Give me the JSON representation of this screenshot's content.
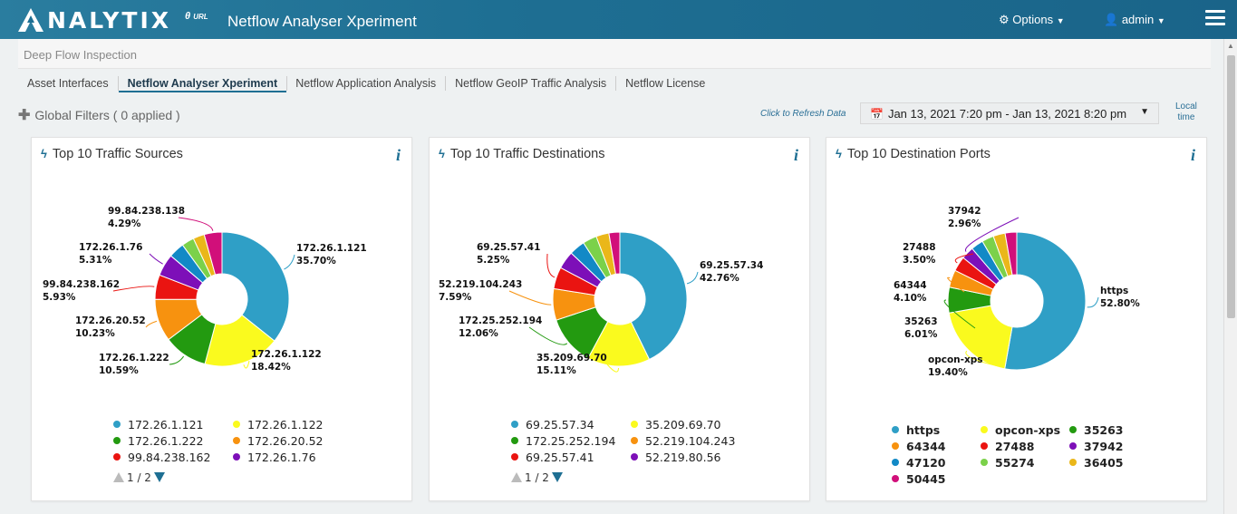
{
  "header": {
    "logo_text": "NALYTIX",
    "url_label": "URL",
    "app_title": "Netflow Analyser Xperiment",
    "options_label": "Options",
    "user_label": "admin"
  },
  "breadcrumb": "Deep Flow Inspection",
  "tabs": [
    {
      "label": "Asset Interfaces"
    },
    {
      "label": "Netflow Analyser Xperiment"
    },
    {
      "label": "Netflow Application Analysis"
    },
    {
      "label": "Netflow GeoIP Traffic Analysis"
    },
    {
      "label": "Netflow License"
    }
  ],
  "filters": {
    "global_label": "Global Filters ( 0 applied )",
    "refresh_label": "Click to Refresh Data",
    "date_range": "Jan 13, 2021 7:20 pm - Jan 13, 2021 8:20 pm",
    "local_time_line1": "Local",
    "local_time_line2": "time"
  },
  "colors": [
    "#2f9fc6",
    "#fafa1e",
    "#239a10",
    "#f7920f",
    "#ea1411",
    "#7d0fb8",
    "#1289c6",
    "#7bd14a",
    "#eab71a",
    "#d10f7a"
  ],
  "chart_data": [
    {
      "type": "pie",
      "title": "Top 10 Traffic Sources",
      "labels": [
        "172.26.1.121",
        "172.26.1.122",
        "172.26.1.222",
        "172.26.20.52",
        "99.84.238.162",
        "172.26.1.76",
        "",
        "",
        "",
        "99.84.238.138"
      ],
      "values": [
        35.7,
        18.42,
        10.59,
        10.23,
        5.93,
        5.31,
        3.8,
        3.0,
        2.73,
        4.29
      ],
      "callouts": [
        {
          "name": "172.26.1.121",
          "pct": "35.70%"
        },
        {
          "name": "172.26.1.122",
          "pct": "18.42%"
        },
        {
          "name": "172.26.1.222",
          "pct": "10.59%"
        },
        {
          "name": "172.26.20.52",
          "pct": "10.23%"
        },
        {
          "name": "99.84.238.162",
          "pct": "5.93%"
        },
        {
          "name": "172.26.1.76",
          "pct": "5.31%"
        },
        {
          "name": "99.84.238.138",
          "pct": "4.29%"
        }
      ],
      "legend": [
        "172.26.1.121",
        "172.26.1.122",
        "172.26.1.222",
        "172.26.20.52",
        "99.84.238.162",
        "172.26.1.76"
      ],
      "pager": "1 / 2"
    },
    {
      "type": "pie",
      "title": "Top 10 Traffic Destinations",
      "labels": [
        "69.25.57.34",
        "35.209.69.70",
        "172.25.252.194",
        "52.219.104.243",
        "69.25.57.41",
        "52.219.80.56",
        "",
        "",
        "",
        ""
      ],
      "values": [
        42.76,
        15.11,
        12.06,
        7.59,
        5.25,
        4.3,
        3.8,
        3.4,
        3.1,
        2.63
      ],
      "callouts": [
        {
          "name": "69.25.57.34",
          "pct": "42.76%"
        },
        {
          "name": "35.209.69.70",
          "pct": "15.11%"
        },
        {
          "name": "172.25.252.194",
          "pct": "12.06%"
        },
        {
          "name": "52.219.104.243",
          "pct": "7.59%"
        },
        {
          "name": "69.25.57.41",
          "pct": "5.25%"
        }
      ],
      "legend": [
        "69.25.57.34",
        "35.209.69.70",
        "172.25.252.194",
        "52.219.104.243",
        "69.25.57.41",
        "52.219.80.56"
      ],
      "pager": "1 / 2"
    },
    {
      "type": "pie",
      "title": "Top 10 Destination Ports",
      "labels": [
        "https",
        "opcon-xps",
        "35263",
        "64344",
        "27488",
        "37942",
        "47120",
        "55274",
        "36405",
        "50445"
      ],
      "values": [
        52.8,
        19.4,
        6.01,
        4.1,
        3.5,
        2.96,
        2.9,
        2.8,
        2.8,
        2.73
      ],
      "callouts": [
        {
          "name": "https",
          "pct": "52.80%"
        },
        {
          "name": "opcon-xps",
          "pct": "19.40%"
        },
        {
          "name": "35263",
          "pct": "6.01%"
        },
        {
          "name": "64344",
          "pct": "4.10%"
        },
        {
          "name": "27488",
          "pct": "3.50%"
        },
        {
          "name": "37942",
          "pct": "2.96%"
        }
      ],
      "legend": [
        "https",
        "opcon-xps",
        "35263",
        "64344",
        "27488",
        "37942",
        "47120",
        "55274",
        "36405",
        "50445"
      ]
    }
  ]
}
